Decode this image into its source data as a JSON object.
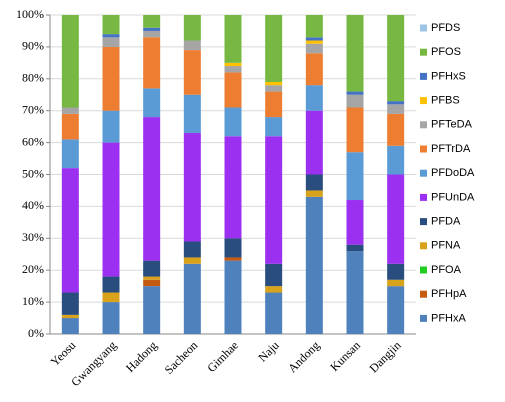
{
  "chart_data": {
    "type": "stacked_bar_percent",
    "categories": [
      "Yeosu",
      "Gwangyang",
      "Hadong",
      "Sacheon",
      "Gimhae",
      "Naju",
      "Andong",
      "Kunsan",
      "Dangjin"
    ],
    "series": [
      {
        "name": "PFHxA",
        "color": "#4f81bd",
        "values": [
          5,
          10,
          15,
          22,
          23,
          13,
          43,
          26,
          15
        ]
      },
      {
        "name": "PFHpA",
        "color": "#c55a11",
        "values": [
          0,
          0,
          2,
          0,
          1,
          0,
          0,
          0,
          0
        ]
      },
      {
        "name": "PFOA",
        "color": "#22cc22",
        "values": [
          0,
          0,
          0,
          0,
          0,
          0,
          0,
          0,
          0
        ]
      },
      {
        "name": "PFNA",
        "color": "#d9a21b",
        "values": [
          1,
          3,
          1,
          2,
          0,
          2,
          2,
          0,
          2
        ]
      },
      {
        "name": "PFDA",
        "color": "#2a4d7f",
        "values": [
          7,
          5,
          5,
          5,
          6,
          7,
          5,
          2,
          5
        ]
      },
      {
        "name": "PFUnDA",
        "color": "#9b30f0",
        "values": [
          39,
          42,
          45,
          34,
          32,
          40,
          20,
          14,
          28
        ]
      },
      {
        "name": "PFDoDA",
        "color": "#5b9bd5",
        "values": [
          9,
          10,
          9,
          12,
          9,
          6,
          8,
          15,
          9
        ]
      },
      {
        "name": "PFTrDA",
        "color": "#ed7d31",
        "values": [
          8,
          20,
          16,
          14,
          11,
          8,
          10,
          14,
          10
        ]
      },
      {
        "name": "PFTeDA",
        "color": "#a5a5a5",
        "values": [
          2,
          3,
          2,
          3,
          2,
          2,
          3,
          4,
          3
        ]
      },
      {
        "name": "PFBS",
        "color": "#ffc000",
        "values": [
          0,
          0,
          0,
          0,
          1,
          1,
          1,
          0,
          0
        ]
      },
      {
        "name": "PFHxS",
        "color": "#4472c4",
        "values": [
          0,
          1,
          1,
          0,
          0,
          0,
          1,
          1,
          1
        ]
      },
      {
        "name": "PFOS",
        "color": "#77b843",
        "values": [
          29,
          6,
          4,
          8,
          15,
          21,
          7,
          24,
          27
        ]
      },
      {
        "name": "PFDS",
        "color": "#9dc3e6",
        "values": [
          0,
          0,
          0,
          0,
          0,
          0,
          0,
          0,
          0
        ]
      }
    ],
    "ylim": [
      0,
      100
    ],
    "yticks": [
      {
        "value": 0,
        "label": "0%"
      },
      {
        "value": 10,
        "label": "10%"
      },
      {
        "value": 20,
        "label": "20%"
      },
      {
        "value": 30,
        "label": "30%"
      },
      {
        "value": 40,
        "label": "40%"
      },
      {
        "value": 50,
        "label": "50%"
      },
      {
        "value": 60,
        "label": "60%"
      },
      {
        "value": 70,
        "label": "70%"
      },
      {
        "value": 80,
        "label": "80%"
      },
      {
        "value": 90,
        "label": "90%"
      },
      {
        "value": 100,
        "label": "100%"
      }
    ],
    "grid": true,
    "legend": "right"
  }
}
